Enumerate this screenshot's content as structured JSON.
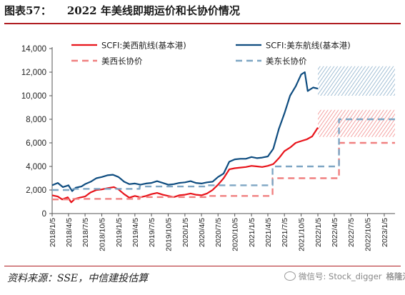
{
  "title": {
    "label": "图表57：",
    "text": "2022 年美线即期运价和长协价情况"
  },
  "source": "资料来源：SSE，中信建投估算",
  "watermark": {
    "text": "微信号: Stock_digger",
    "logo": "格隆汇"
  },
  "colors": {
    "scfi_west": "#e8141b",
    "scfi_east": "#0f4d80",
    "contract_west": "#f08080",
    "contract_east": "#7ea6c4"
  },
  "chart_data": {
    "type": "line",
    "title": "",
    "xlabel": "",
    "ylabel": "",
    "ylim": [
      0,
      14000
    ],
    "yticks": [
      0,
      2000,
      4000,
      6000,
      8000,
      10000,
      12000,
      14000
    ],
    "ytick_labels": [
      "0",
      "2,000",
      "4,000",
      "6,000",
      "8,000",
      "10,000",
      "12,000",
      "14,000"
    ],
    "xlim": [
      "2018-01-05",
      "2023-03-05"
    ],
    "x_tick_labels": [
      "2018/1/5",
      "2018/4/5",
      "2018/7/5",
      "2018/10/5",
      "2019/1/5",
      "2019/4/5",
      "2019/7/5",
      "2019/10/5",
      "2020/1/5",
      "2020/4/5",
      "2020/7/5",
      "2020/10/5",
      "2021/1/5",
      "2021/4/5",
      "2021/7/5",
      "2021/10/5",
      "2022/1/5",
      "2022/4/5",
      "2022/7/5",
      "2022/10/5",
      "2023/1/5"
    ],
    "grid": false,
    "legend": "top",
    "series": [
      {
        "name": "SCFI:美西航线(基本港)",
        "style": "solid",
        "points": [
          [
            "2018-01-05",
            1550
          ],
          [
            "2018-02-05",
            1450
          ],
          [
            "2018-03-01",
            1200
          ],
          [
            "2018-04-01",
            1380
          ],
          [
            "2018-04-20",
            950
          ],
          [
            "2018-05-10",
            1250
          ],
          [
            "2018-06-05",
            1350
          ],
          [
            "2018-07-05",
            1450
          ],
          [
            "2018-08-05",
            1800
          ],
          [
            "2018-09-05",
            2000
          ],
          [
            "2018-10-05",
            2050
          ],
          [
            "2018-11-05",
            2150
          ],
          [
            "2018-12-10",
            2250
          ],
          [
            "2019-01-05",
            2050
          ],
          [
            "2019-02-05",
            1650
          ],
          [
            "2019-03-05",
            1350
          ],
          [
            "2019-04-05",
            1500
          ],
          [
            "2019-05-05",
            1380
          ],
          [
            "2019-06-05",
            1500
          ],
          [
            "2019-07-05",
            1650
          ],
          [
            "2019-08-05",
            1750
          ],
          [
            "2019-09-05",
            1600
          ],
          [
            "2019-10-05",
            1500
          ],
          [
            "2019-11-05",
            1400
          ],
          [
            "2019-12-05",
            1550
          ],
          [
            "2020-01-05",
            1600
          ],
          [
            "2020-02-05",
            1700
          ],
          [
            "2020-03-05",
            1600
          ],
          [
            "2020-04-05",
            1550
          ],
          [
            "2020-05-05",
            1700
          ],
          [
            "2020-06-05",
            2000
          ],
          [
            "2020-07-05",
            2450
          ],
          [
            "2020-08-05",
            3000
          ],
          [
            "2020-09-05",
            3750
          ],
          [
            "2020-10-05",
            3850
          ],
          [
            "2020-11-05",
            3900
          ],
          [
            "2020-12-05",
            3950
          ],
          [
            "2021-01-05",
            4050
          ],
          [
            "2021-02-05",
            4000
          ],
          [
            "2021-03-05",
            3950
          ],
          [
            "2021-04-05",
            4050
          ],
          [
            "2021-05-05",
            4200
          ],
          [
            "2021-06-05",
            4700
          ],
          [
            "2021-07-05",
            5300
          ],
          [
            "2021-08-05",
            5600
          ],
          [
            "2021-09-05",
            6000
          ],
          [
            "2021-10-05",
            6150
          ],
          [
            "2021-11-05",
            6300
          ],
          [
            "2021-12-05",
            6550
          ],
          [
            "2022-01-05",
            7300
          ]
        ]
      },
      {
        "name": "SCFI:美东航线(基本港)",
        "style": "solid",
        "points": [
          [
            "2018-01-05",
            2400
          ],
          [
            "2018-02-05",
            2600
          ],
          [
            "2018-03-05",
            2250
          ],
          [
            "2018-04-05",
            2400
          ],
          [
            "2018-04-25",
            1900
          ],
          [
            "2018-05-15",
            2200
          ],
          [
            "2018-06-15",
            2300
          ],
          [
            "2018-07-05",
            2500
          ],
          [
            "2018-08-05",
            2700
          ],
          [
            "2018-09-05",
            3000
          ],
          [
            "2018-10-05",
            3100
          ],
          [
            "2018-11-05",
            3250
          ],
          [
            "2018-12-05",
            3300
          ],
          [
            "2019-01-05",
            3100
          ],
          [
            "2019-02-05",
            2700
          ],
          [
            "2019-03-05",
            2500
          ],
          [
            "2019-04-05",
            2550
          ],
          [
            "2019-05-05",
            2450
          ],
          [
            "2019-06-05",
            2550
          ],
          [
            "2019-07-05",
            2600
          ],
          [
            "2019-08-05",
            2750
          ],
          [
            "2019-09-05",
            2600
          ],
          [
            "2019-10-05",
            2450
          ],
          [
            "2019-11-05",
            2500
          ],
          [
            "2019-12-05",
            2600
          ],
          [
            "2020-01-05",
            2650
          ],
          [
            "2020-02-05",
            2750
          ],
          [
            "2020-03-05",
            2600
          ],
          [
            "2020-04-05",
            2550
          ],
          [
            "2020-05-05",
            2650
          ],
          [
            "2020-06-05",
            2700
          ],
          [
            "2020-07-05",
            3100
          ],
          [
            "2020-08-05",
            3400
          ],
          [
            "2020-09-05",
            4400
          ],
          [
            "2020-10-05",
            4600
          ],
          [
            "2020-11-05",
            4650
          ],
          [
            "2020-12-05",
            4650
          ],
          [
            "2021-01-05",
            4800
          ],
          [
            "2021-02-05",
            4700
          ],
          [
            "2021-03-05",
            4750
          ],
          [
            "2021-04-05",
            4850
          ],
          [
            "2021-05-05",
            5500
          ],
          [
            "2021-06-05",
            7200
          ],
          [
            "2021-07-05",
            8500
          ],
          [
            "2021-08-05",
            10000
          ],
          [
            "2021-09-05",
            10800
          ],
          [
            "2021-10-05",
            11800
          ],
          [
            "2021-10-25",
            12000
          ],
          [
            "2021-11-10",
            10400
          ],
          [
            "2021-12-10",
            10700
          ],
          [
            "2022-01-05",
            10600
          ]
        ]
      },
      {
        "name": "美西长协价",
        "style": "dashed",
        "points": [
          [
            "2018-01-05",
            1200
          ],
          [
            "2018-05-01",
            1200
          ],
          [
            "2018-05-01",
            1250
          ],
          [
            "2019-05-01",
            1250
          ],
          [
            "2019-05-01",
            1400
          ],
          [
            "2020-05-01",
            1400
          ],
          [
            "2020-05-01",
            1500
          ],
          [
            "2021-05-01",
            1500
          ],
          [
            "2021-05-01",
            3000
          ],
          [
            "2022-05-01",
            3000
          ],
          [
            "2022-05-01",
            6000
          ],
          [
            "2023-03-05",
            6000
          ]
        ]
      },
      {
        "name": "美东长协价",
        "style": "dashed",
        "points": [
          [
            "2018-01-05",
            2000
          ],
          [
            "2018-05-01",
            2000
          ],
          [
            "2018-05-01",
            2100
          ],
          [
            "2019-05-01",
            2100
          ],
          [
            "2019-05-01",
            2300
          ],
          [
            "2020-05-01",
            2300
          ],
          [
            "2020-05-01",
            2400
          ],
          [
            "2021-05-01",
            2400
          ],
          [
            "2021-05-01",
            4000
          ],
          [
            "2022-05-01",
            4000
          ],
          [
            "2022-05-01",
            8000
          ],
          [
            "2023-03-05",
            8000
          ]
        ]
      }
    ],
    "shaded_ranges": [
      {
        "series": "SCFI:美东航线(基本港)",
        "x": [
          "2022-01-05",
          "2023-03-05"
        ],
        "y": [
          10000,
          12500
        ],
        "style": "hatched"
      },
      {
        "series": "SCFI:美西航线(基本港)",
        "x": [
          "2022-01-05",
          "2023-03-05"
        ],
        "y": [
          6500,
          8800
        ],
        "style": "hatched"
      }
    ]
  }
}
